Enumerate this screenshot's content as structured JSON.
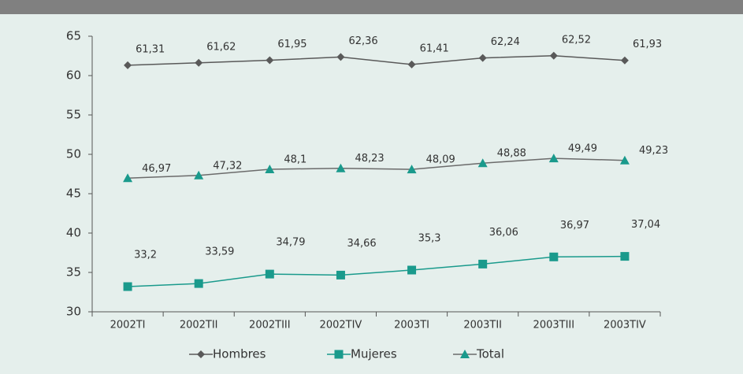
{
  "chart_data": {
    "type": "line",
    "categories": [
      "2002TI",
      "2002TII",
      "2002TIII",
      "2002TIV",
      "2003TI",
      "2003TII",
      "2003TIII",
      "2003TIV"
    ],
    "series": [
      {
        "name": "Hombres",
        "color": "#595959",
        "line_color": "#595959",
        "marker": "diamond",
        "values": [
          61.31,
          61.62,
          61.95,
          62.36,
          61.41,
          62.24,
          62.52,
          61.93
        ],
        "value_labels": [
          "61,31",
          "61,62",
          "61,95",
          "62,36",
          "61,41",
          "62,24",
          "62,52",
          "61,93"
        ]
      },
      {
        "name": "Mujeres",
        "color": "#1a9a8c",
        "line_color": "#1a9a8c",
        "marker": "square",
        "values": [
          33.2,
          33.59,
          34.79,
          34.66,
          35.3,
          36.06,
          36.97,
          37.04
        ],
        "value_labels": [
          "33,2",
          "33,59",
          "34,79",
          "34,66",
          "35,3",
          "36,06",
          "36,97",
          "37,04"
        ]
      },
      {
        "name": "Total",
        "color": "#1a9a8c",
        "line_color": "#6b6b6b",
        "marker": "triangle",
        "values": [
          46.97,
          47.32,
          48.1,
          48.23,
          48.09,
          48.88,
          49.49,
          49.23
        ],
        "value_labels": [
          "46,97",
          "47,32",
          "48,1",
          "48,23",
          "48,09",
          "48,88",
          "49,49",
          "49,23"
        ]
      }
    ],
    "ylim": [
      30,
      65
    ],
    "yticks": [
      30,
      35,
      40,
      45,
      50,
      55,
      60,
      65
    ],
    "grid": false,
    "legend": "bottom"
  }
}
